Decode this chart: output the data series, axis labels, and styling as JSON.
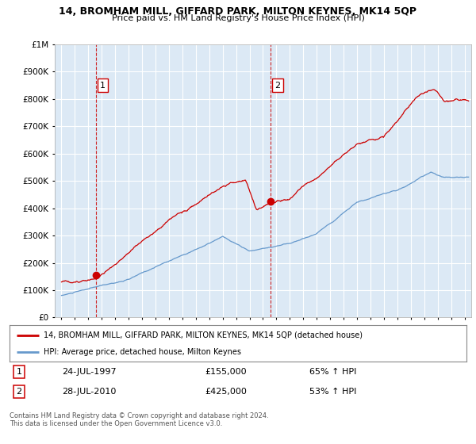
{
  "title": "14, BROMHAM MILL, GIFFARD PARK, MILTON KEYNES, MK14 5QP",
  "subtitle": "Price paid vs. HM Land Registry's House Price Index (HPI)",
  "legend_label_red": "14, BROMHAM MILL, GIFFARD PARK, MILTON KEYNES, MK14 5QP (detached house)",
  "legend_label_blue": "HPI: Average price, detached house, Milton Keynes",
  "sale1_label": "1",
  "sale1_date": "24-JUL-1997",
  "sale1_price": "£155,000",
  "sale1_hpi": "65% ↑ HPI",
  "sale2_label": "2",
  "sale2_date": "28-JUL-2010",
  "sale2_price": "£425,000",
  "sale2_hpi": "53% ↑ HPI",
  "footnote": "Contains HM Land Registry data © Crown copyright and database right 2024.\nThis data is licensed under the Open Government Licence v3.0.",
  "background_color": "#ffffff",
  "plot_bg_color": "#dce9f5",
  "red_color": "#cc0000",
  "blue_color": "#6699cc",
  "sale1_x": 1997.56,
  "sale2_x": 2010.56,
  "ylim_min": 0,
  "ylim_max": 1000000,
  "xlim_min": 1994.5,
  "xlim_max": 2025.5
}
